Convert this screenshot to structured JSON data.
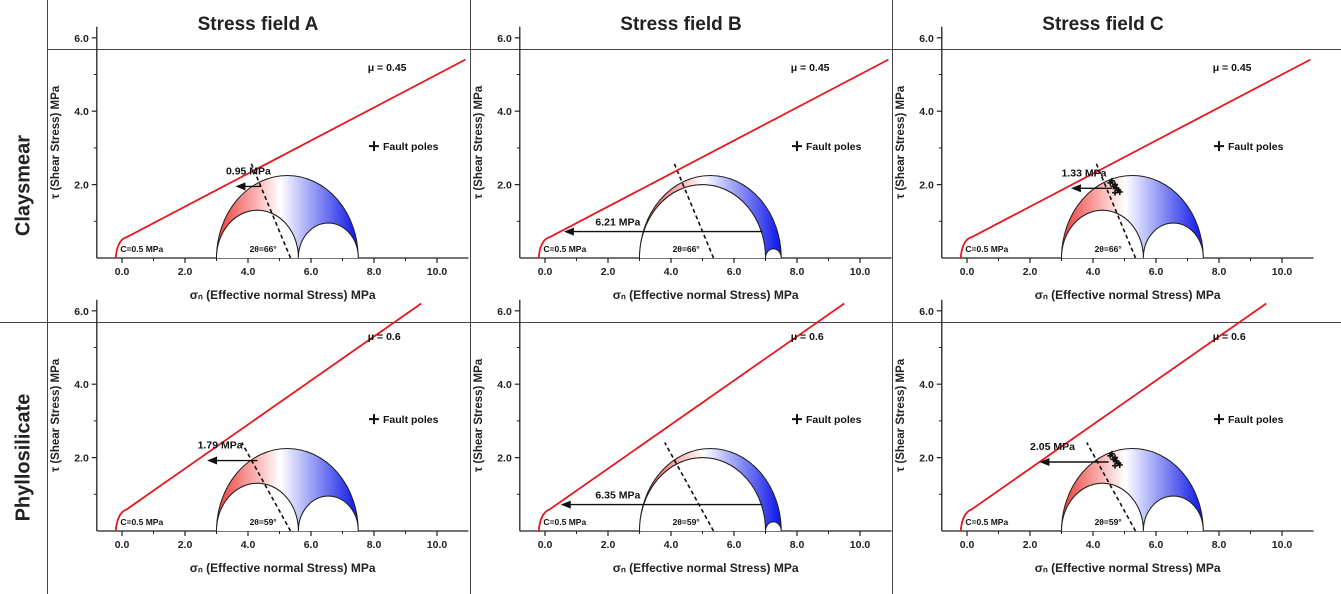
{
  "columns": [
    "Stress field A",
    "Stress field B",
    "Stress field C"
  ],
  "rows": [
    "Claysmear",
    "Phyllosilicate"
  ],
  "colors": {
    "envelope": "#e8171e",
    "warm": "#ee3a36",
    "cool": "#0a14e8",
    "axis": "#222222"
  },
  "chart_data": [
    {
      "type": "scatter",
      "row": "Claysmear",
      "column": "Stress field A",
      "mu_label": "μ = 0.45",
      "mu": 0.45,
      "cohesion_label": "C=0.5 MPa",
      "cohesion": 0.5,
      "angle_label": "2θ=66°",
      "two_theta": 66,
      "arrow_label": "0.95 MPa",
      "arrow_value": 0.95,
      "legend": "Fault poles",
      "sigma3": 3.0,
      "sigma2": 5.6,
      "sigma1": 7.5,
      "arrow_y": 1.95,
      "arrow_x0": 3.6,
      "arrow_x1": 4.4,
      "xlabel": "σₙ (Effective normal Stress) MPa",
      "ylabel": "τ (Shear Stress) MPa",
      "xticks": [
        "0.0",
        "2.0",
        "4.0",
        "6.0",
        "8.0",
        "10.0"
      ],
      "yticks": [
        "2.0",
        "4.0",
        "6.0"
      ],
      "xlim": [
        -0.8,
        11
      ],
      "ylim": [
        0,
        6.3
      ]
    },
    {
      "type": "scatter",
      "row": "Claysmear",
      "column": "Stress field B",
      "mu_label": "μ = 0.45",
      "mu": 0.45,
      "cohesion_label": "C=0.5 MPa",
      "cohesion": 0.5,
      "angle_label": "2θ=66°",
      "two_theta": 66,
      "arrow_label": "6.21 MPa",
      "arrow_value": 6.21,
      "legend": "Fault poles",
      "sigma3": 3.0,
      "sigma2": 7.0,
      "sigma1": 7.5,
      "arrow_y": 0.72,
      "arrow_x0": 0.6,
      "arrow_x1": 6.9,
      "xlabel": "σₙ (Effective normal Stress) MPa",
      "ylabel": "τ (Shear Stress) MPa",
      "xticks": [
        "0.0",
        "2.0",
        "4.0",
        "6.0",
        "8.0",
        "10.0"
      ],
      "yticks": [
        "2.0",
        "4.0",
        "6.0"
      ],
      "xlim": [
        -0.8,
        11
      ],
      "ylim": [
        0,
        6.3
      ]
    },
    {
      "type": "scatter",
      "row": "Claysmear",
      "column": "Stress field C",
      "mu_label": "μ = 0.45",
      "mu": 0.45,
      "cohesion_label": "C=0.5 MPa",
      "cohesion": 0.5,
      "angle_label": "2θ=66°",
      "two_theta": 66,
      "arrow_label": "1.33 MPa",
      "arrow_value": 1.33,
      "legend": "Fault poles",
      "sigma3": 3.0,
      "sigma2": 5.6,
      "sigma1": 7.5,
      "arrow_y": 1.9,
      "arrow_x0": 3.3,
      "arrow_x1": 4.6,
      "xlabel": "σₙ (Effective normal Stress) MPa",
      "ylabel": "τ (Shear Stress) MPa",
      "xticks": [
        "0.0",
        "2.0",
        "4.0",
        "6.0",
        "8.0",
        "10.0"
      ],
      "yticks": [
        "2.0",
        "4.0",
        "6.0"
      ],
      "xlim": [
        -0.8,
        11
      ],
      "ylim": [
        0,
        6.3
      ]
    },
    {
      "type": "scatter",
      "row": "Phyllosilicate",
      "column": "Stress field A",
      "mu_label": "μ = 0.6",
      "mu": 0.6,
      "cohesion_label": "C=0.5 MPa",
      "cohesion": 0.5,
      "angle_label": "2θ=59°",
      "two_theta": 59,
      "arrow_label": "1.79 MPa",
      "arrow_value": 1.79,
      "legend": "Fault poles",
      "sigma3": 3.0,
      "sigma2": 5.6,
      "sigma1": 7.5,
      "arrow_y": 1.92,
      "arrow_x0": 2.7,
      "arrow_x1": 4.3,
      "xlabel": "σₙ (Effective normal Stress) MPa",
      "ylabel": "τ (Shear Stress) MPa",
      "xticks": [
        "0.0",
        "2.0",
        "4.0",
        "6.0",
        "8.0",
        "10.0"
      ],
      "yticks": [
        "2.0",
        "4.0",
        "6.0"
      ],
      "xlim": [
        -0.8,
        11
      ],
      "ylim": [
        0,
        6.3
      ]
    },
    {
      "type": "scatter",
      "row": "Phyllosilicate",
      "column": "Stress field B",
      "mu_label": "μ = 0.6",
      "mu": 0.6,
      "cohesion_label": "C=0.5 MPa",
      "cohesion": 0.5,
      "angle_label": "2θ=59°",
      "two_theta": 59,
      "arrow_label": "6.35 MPa",
      "arrow_value": 6.35,
      "legend": "Fault poles",
      "sigma3": 3.0,
      "sigma2": 7.0,
      "sigma1": 7.5,
      "arrow_y": 0.72,
      "arrow_x0": 0.5,
      "arrow_x1": 6.9,
      "xlabel": "σₙ (Effective normal Stress) MPa",
      "ylabel": "τ (Shear Stress) MPa",
      "xticks": [
        "0.0",
        "2.0",
        "4.0",
        "6.0",
        "8.0",
        "10.0"
      ],
      "yticks": [
        "2.0",
        "4.0",
        "6.0"
      ],
      "xlim": [
        -0.8,
        11
      ],
      "ylim": [
        0,
        6.3
      ]
    },
    {
      "type": "scatter",
      "row": "Phyllosilicate",
      "column": "Stress field C",
      "mu_label": "μ = 0.6",
      "mu": 0.6,
      "cohesion_label": "C=0.5 MPa",
      "cohesion": 0.5,
      "angle_label": "2θ=59°",
      "two_theta": 59,
      "arrow_label": "2.05 MPa",
      "arrow_value": 2.05,
      "legend": "Fault poles",
      "sigma3": 3.0,
      "sigma2": 5.6,
      "sigma1": 7.5,
      "arrow_y": 1.88,
      "arrow_x0": 2.3,
      "arrow_x1": 4.5,
      "xlabel": "σₙ (Effective normal Stress) MPa",
      "ylabel": "τ (Shear Stress) MPa",
      "xticks": [
        "0.0",
        "2.0",
        "4.0",
        "6.0",
        "8.0",
        "10.0"
      ],
      "yticks": [
        "2.0",
        "4.0",
        "6.0"
      ],
      "xlim": [
        -0.8,
        11
      ],
      "ylim": [
        0,
        6.3
      ]
    }
  ]
}
